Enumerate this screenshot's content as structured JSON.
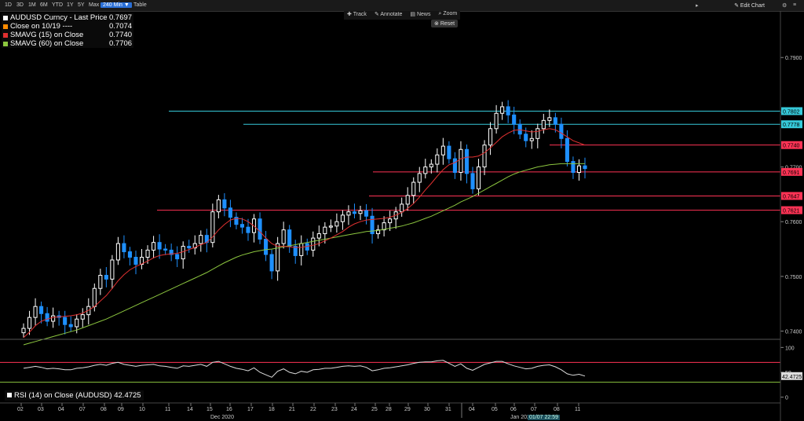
{
  "toolbar": {
    "timeframes": [
      "1D",
      "3D",
      "1M",
      "6M",
      "YTD",
      "1Y",
      "5Y",
      "Max"
    ],
    "interval": "240 Min ▼",
    "table": "Table",
    "tools": [
      "Track",
      "Annotate",
      "News",
      "Zoom"
    ],
    "reset": "Reset",
    "edit_chart": "Edit Chart"
  },
  "colors": {
    "price_up": "#ffffff",
    "price_down": "#1e90ff",
    "sma15": "#e03030",
    "sma60": "#8cc63f",
    "horizontal_cyan": "#36c9d9",
    "horizontal_red": "#ff3355",
    "close_line": "#ff8c00",
    "rsi": "#dddddd"
  },
  "legend": [
    {
      "name": "AUDUSD Curncy - Last Price",
      "value": "0.7697",
      "color": "#ffffff"
    },
    {
      "name": "Close on 10/19 ----",
      "value": "0.7074",
      "color": "#ff8c00"
    },
    {
      "name": "SMAVG (15)  on Close",
      "value": "0.7740",
      "color": "#e03030"
    },
    {
      "name": "SMAVG (60)  on Close",
      "value": "0.7706",
      "color": "#8cc63f"
    }
  ],
  "rsi_legend": {
    "label": "RSI (14)  on Close (AUDUSD)",
    "value": "42.4725"
  },
  "x_axis": {
    "day_labels": [
      "02",
      "03",
      "04",
      "07",
      "08",
      "09",
      "10",
      "11",
      "14",
      "15",
      "16",
      "17",
      "18",
      "21",
      "22",
      "23",
      "24",
      "25",
      "28",
      "29",
      "30",
      "31",
      "04",
      "05",
      "06",
      "07",
      "08",
      "11"
    ],
    "month_labels": [
      "Dec 2020",
      "Jan 2021"
    ],
    "cursor_label": "01/07 22:59"
  },
  "chart_data": {
    "type": "line",
    "subtype": "candlestick_with_moving_averages",
    "y_ticks": [
      "0.7900",
      "0.7800",
      "0.7700",
      "0.7600",
      "0.7500",
      "0.7400"
    ],
    "y_ticks_values": [
      0.79,
      0.78,
      0.77,
      0.76,
      0.75,
      0.74
    ],
    "ylim": [
      0.7385,
      0.7985
    ],
    "horizontal_levels": [
      {
        "value": 0.7802,
        "label": "0.7802",
        "color": "#36c9d9"
      },
      {
        "value": 0.7778,
        "label": "0.7778",
        "color": "#36c9d9"
      },
      {
        "value": 0.774,
        "label": "0.7740",
        "color": "#ff3355"
      },
      {
        "value": 0.7691,
        "label": "0.7691",
        "color": "#ff3355"
      },
      {
        "value": 0.7647,
        "label": "0.7647",
        "color": "#ff3355"
      },
      {
        "value": 0.7621,
        "label": "0.7621",
        "color": "#ff3355"
      }
    ],
    "price_close_series": [
      0.7405,
      0.7425,
      0.7445,
      0.7432,
      0.7418,
      0.7428,
      0.7425,
      0.7412,
      0.7408,
      0.7422,
      0.743,
      0.7445,
      0.7478,
      0.7502,
      0.7495,
      0.753,
      0.756,
      0.7545,
      0.7535,
      0.7522,
      0.7535,
      0.7548,
      0.7562,
      0.755,
      0.7548,
      0.754,
      0.7532,
      0.7555,
      0.7552,
      0.756,
      0.7575,
      0.7562,
      0.7618,
      0.764,
      0.7625,
      0.7608,
      0.7595,
      0.759,
      0.758,
      0.7605,
      0.7568,
      0.754,
      0.751,
      0.756,
      0.7585,
      0.7555,
      0.7538,
      0.756,
      0.7548,
      0.757,
      0.7578,
      0.759,
      0.7592,
      0.76,
      0.7612,
      0.7618,
      0.7615,
      0.762,
      0.761,
      0.7578,
      0.7585,
      0.7598,
      0.7605,
      0.7618,
      0.7632,
      0.7648,
      0.7672,
      0.7688,
      0.77,
      0.7705,
      0.7722,
      0.7738,
      0.7715,
      0.769,
      0.7732,
      0.7688,
      0.766,
      0.77,
      0.774,
      0.777,
      0.7798,
      0.781,
      0.7795,
      0.7778,
      0.776,
      0.7748,
      0.7752,
      0.777,
      0.7785,
      0.779,
      0.7778,
      0.7752,
      0.771,
      0.769,
      0.7702,
      0.7697
    ],
    "sma15_series": [
      0.7388,
      0.7398,
      0.741,
      0.7418,
      0.7422,
      0.7425,
      0.7426,
      0.7427,
      0.7428,
      0.743,
      0.7433,
      0.7438,
      0.7445,
      0.7455,
      0.7465,
      0.7478,
      0.7492,
      0.7503,
      0.7512,
      0.7518,
      0.7523,
      0.7528,
      0.7534,
      0.7538,
      0.754,
      0.7541,
      0.7542,
      0.7545,
      0.7549,
      0.7553,
      0.7558,
      0.7562,
      0.7572,
      0.7585,
      0.7595,
      0.7603,
      0.7606,
      0.7605,
      0.76,
      0.7592,
      0.7582,
      0.757,
      0.756,
      0.7555,
      0.7555,
      0.7554,
      0.7553,
      0.7553,
      0.7555,
      0.7557,
      0.756,
      0.7565,
      0.757,
      0.7576,
      0.7582,
      0.759,
      0.7596,
      0.76,
      0.7603,
      0.7604,
      0.7605,
      0.7606,
      0.7608,
      0.7612,
      0.7617,
      0.7624,
      0.7633,
      0.7645,
      0.7658,
      0.767,
      0.7683,
      0.7695,
      0.7704,
      0.7708,
      0.7715,
      0.7718,
      0.7718,
      0.772,
      0.7726,
      0.7735,
      0.7745,
      0.7755,
      0.7762,
      0.7767,
      0.7768,
      0.7766,
      0.7764,
      0.7765,
      0.7768,
      0.777,
      0.7768,
      0.7762,
      0.7755,
      0.7748,
      0.7744,
      0.774
    ],
    "sma60_series": [
      0.7375,
      0.7378,
      0.7381,
      0.7384,
      0.7387,
      0.739,
      0.7393,
      0.7396,
      0.7399,
      0.7402,
      0.7406,
      0.741,
      0.7414,
      0.7418,
      0.7422,
      0.7427,
      0.7432,
      0.7437,
      0.7442,
      0.7447,
      0.7452,
      0.7457,
      0.7462,
      0.7467,
      0.7472,
      0.7477,
      0.7482,
      0.7487,
      0.7492,
      0.7497,
      0.7502,
      0.7507,
      0.7513,
      0.7519,
      0.7525,
      0.753,
      0.7535,
      0.7539,
      0.7542,
      0.7545,
      0.7547,
      0.7549,
      0.755,
      0.7552,
      0.7554,
      0.7556,
      0.7558,
      0.756,
      0.7562,
      0.7564,
      0.7566,
      0.7568,
      0.757,
      0.7572,
      0.7574,
      0.7576,
      0.7578,
      0.758,
      0.7582,
      0.7583,
      0.7584,
      0.7586,
      0.7588,
      0.759,
      0.7592,
      0.7595,
      0.7598,
      0.7602,
      0.7606,
      0.761,
      0.7615,
      0.762,
      0.7625,
      0.763,
      0.7636,
      0.7641,
      0.7646,
      0.7652,
      0.7658,
      0.7664,
      0.767,
      0.7676,
      0.7682,
      0.7687,
      0.7691,
      0.7694,
      0.7697,
      0.77,
      0.7702,
      0.7704,
      0.7705,
      0.7706,
      0.7706,
      0.7706,
      0.7706,
      0.7706
    ],
    "rsi": {
      "y_ticks": [
        "100",
        "50",
        "0"
      ],
      "ylim": [
        -10,
        110
      ],
      "levels": [
        {
          "value": 70,
          "color": "#ff3355"
        },
        {
          "value": 30,
          "color": "#8cc63f"
        }
      ],
      "current": "42.4725",
      "series": [
        58,
        60,
        62,
        60,
        57,
        58,
        57,
        55,
        55,
        58,
        59,
        61,
        64,
        66,
        64,
        68,
        70,
        66,
        64,
        62,
        64,
        65,
        66,
        63,
        62,
        60,
        58,
        63,
        62,
        64,
        66,
        62,
        70,
        72,
        67,
        62,
        58,
        56,
        53,
        59,
        50,
        45,
        40,
        52,
        57,
        50,
        47,
        52,
        50,
        55,
        56,
        58,
        58,
        60,
        62,
        63,
        62,
        63,
        60,
        53,
        55,
        58,
        59,
        61,
        63,
        65,
        68,
        70,
        71,
        71,
        73,
        74,
        68,
        62,
        67,
        58,
        54,
        60,
        66,
        69,
        72,
        72,
        67,
        63,
        60,
        57,
        58,
        62,
        64,
        65,
        61,
        55,
        47,
        44,
        46,
        42.47
      ]
    }
  }
}
